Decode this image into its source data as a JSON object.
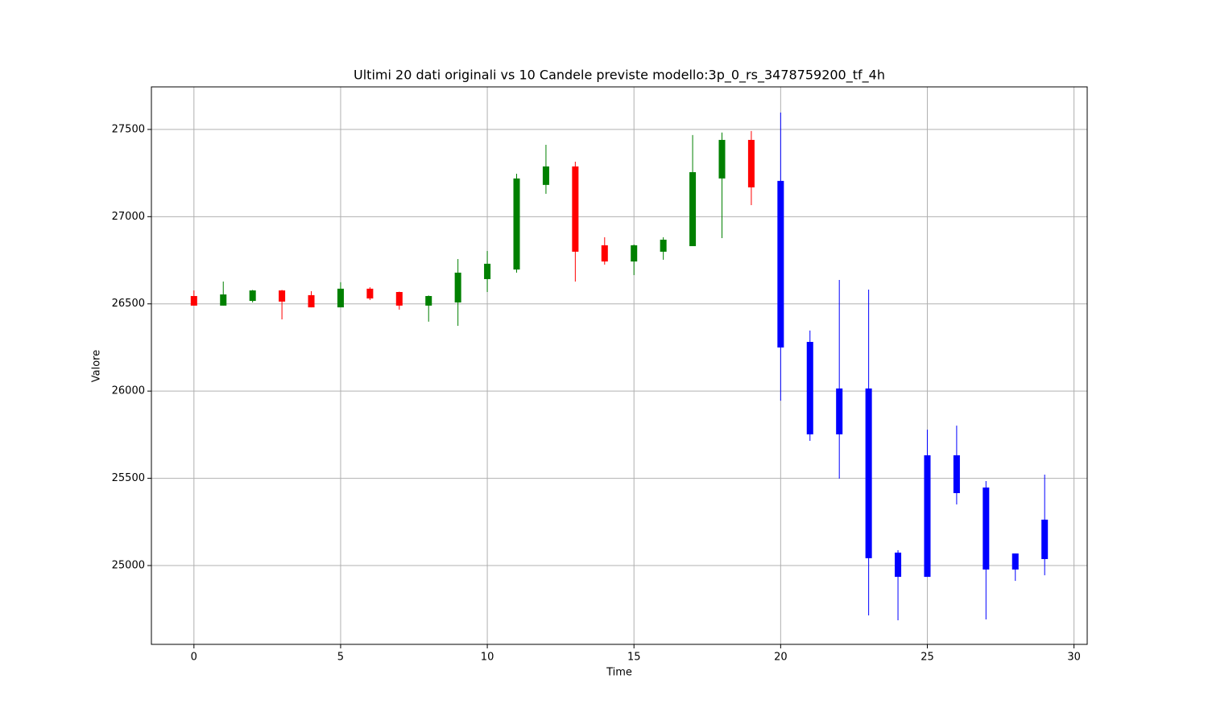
{
  "chart_data": {
    "type": "candlestick",
    "title": "Ultimi 20 dati originali vs 10 Candele previste modello:3p_0_rs_3478759200_tf_4h",
    "x_label": "Time",
    "y_label": "Valore",
    "x": [
      0,
      1,
      2,
      3,
      4,
      5,
      6,
      7,
      8,
      9,
      10,
      11,
      12,
      13,
      14,
      15,
      16,
      17,
      18,
      19,
      20,
      21,
      22,
      23,
      24,
      25,
      26,
      27,
      28,
      29
    ],
    "open": [
      26545,
      26490,
      26517,
      26577,
      26550,
      26480,
      26587,
      26568,
      26490,
      26508,
      26642,
      26697,
      27182,
      27288,
      26836,
      26743,
      26799,
      26831,
      27219,
      27440,
      27205,
      26282,
      25752,
      26015,
      25074,
      24935,
      25632,
      25447,
      25069,
      25263
    ],
    "high": [
      26577,
      26628,
      26580,
      26580,
      26573,
      26624,
      26595,
      26570,
      26548,
      26757,
      26803,
      27246,
      27412,
      27315,
      26882,
      26840,
      26882,
      27468,
      27482,
      27491,
      27597,
      26347,
      26637,
      26582,
      25088,
      25779,
      25802,
      25484,
      25069,
      25521
    ],
    "low": [
      26490,
      26490,
      26508,
      26411,
      26480,
      26480,
      26522,
      26467,
      26398,
      26374,
      26568,
      26679,
      27131,
      26628,
      26725,
      26665,
      26753,
      26831,
      26877,
      27066,
      25945,
      25715,
      25498,
      24714,
      24686,
      24935,
      25350,
      24691,
      24912,
      24944
    ],
    "close": [
      26490,
      26554,
      26577,
      26513,
      26480,
      26587,
      26531,
      26490,
      26545,
      26679,
      26730,
      27219,
      27288,
      26799,
      26743,
      26836,
      26868,
      27255,
      27440,
      27168,
      26250,
      25752,
      26015,
      25042,
      24935,
      25632,
      25415,
      24977,
      24977,
      25037
    ],
    "colors": [
      "red",
      "green",
      "green",
      "red",
      "red",
      "green",
      "red",
      "red",
      "green",
      "green",
      "green",
      "green",
      "green",
      "red",
      "red",
      "green",
      "green",
      "green",
      "green",
      "red",
      "blue",
      "blue",
      "blue",
      "blue",
      "blue",
      "blue",
      "blue",
      "blue",
      "blue",
      "blue"
    ],
    "xlim": [
      -1.45,
      30.45
    ],
    "ylim": [
      24548,
      27744
    ],
    "xticks": [
      0,
      5,
      10,
      15,
      20,
      25,
      30
    ],
    "yticks": [
      25000,
      25500,
      26000,
      26500,
      27000,
      27500
    ],
    "grid": true
  }
}
